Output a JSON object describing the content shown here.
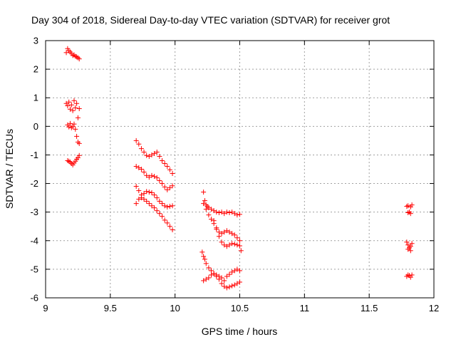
{
  "chart_data": {
    "type": "scatter",
    "title": "Day 304 of 2018, Sidereal Day-to-day VTEC variation (SDTVAR) for receiver grot",
    "xlabel": "GPS time / hours",
    "ylabel": "SDTVAR / TECUs",
    "xlim": [
      9,
      12
    ],
    "ylim": [
      -6,
      3
    ],
    "xticks": [
      9,
      9.5,
      10,
      10.5,
      11,
      11.5,
      12
    ],
    "yticks": [
      -6,
      -5,
      -4,
      -3,
      -2,
      -1,
      0,
      1,
      2,
      3
    ],
    "xtick_labels": [
      "9",
      "9.5",
      "10",
      "10.5",
      "11",
      "11.5",
      "12"
    ],
    "ytick_labels": [
      "-6",
      "-5",
      "-4",
      "-3",
      "-2",
      "-1",
      "0",
      "1",
      "2",
      "3"
    ],
    "grid": true,
    "marker": "+",
    "marker_color": "#ff0000",
    "series": [
      {
        "name": "cluster-9.2h",
        "points": [
          [
            9.16,
            2.58
          ],
          [
            9.17,
            2.72
          ],
          [
            9.18,
            2.65
          ],
          [
            9.19,
            2.6
          ],
          [
            9.2,
            2.55
          ],
          [
            9.21,
            2.48
          ],
          [
            9.22,
            2.5
          ],
          [
            9.23,
            2.45
          ],
          [
            9.24,
            2.43
          ],
          [
            9.25,
            2.4
          ],
          [
            9.26,
            2.36
          ],
          [
            9.16,
            0.8
          ],
          [
            9.17,
            0.72
          ],
          [
            9.18,
            0.85
          ],
          [
            9.19,
            0.6
          ],
          [
            9.2,
            0.75
          ],
          [
            9.21,
            0.55
          ],
          [
            9.22,
            0.9
          ],
          [
            9.23,
            0.65
          ],
          [
            9.24,
            0.8
          ],
          [
            9.25,
            0.3
          ],
          [
            9.26,
            0.62
          ],
          [
            9.17,
            0.05
          ],
          [
            9.18,
            -0.02
          ],
          [
            9.19,
            0.1
          ],
          [
            9.2,
            -0.05
          ],
          [
            9.21,
            0.0
          ],
          [
            9.22,
            0.08
          ],
          [
            9.23,
            -0.1
          ],
          [
            9.24,
            -0.35
          ],
          [
            9.25,
            -0.55
          ],
          [
            9.26,
            -0.6
          ],
          [
            9.17,
            -1.2
          ],
          [
            9.18,
            -1.22
          ],
          [
            9.19,
            -1.25
          ],
          [
            9.2,
            -1.3
          ],
          [
            9.21,
            -1.35
          ],
          [
            9.22,
            -1.28
          ],
          [
            9.23,
            -1.22
          ],
          [
            9.24,
            -1.15
          ],
          [
            9.25,
            -1.1
          ],
          [
            9.26,
            -1.02
          ]
        ]
      },
      {
        "name": "cluster-9.8h",
        "points": [
          [
            9.7,
            -0.5
          ],
          [
            9.72,
            -0.62
          ],
          [
            9.74,
            -0.78
          ],
          [
            9.76,
            -0.9
          ],
          [
            9.78,
            -1.02
          ],
          [
            9.8,
            -1.05
          ],
          [
            9.82,
            -1.0
          ],
          [
            9.84,
            -0.95
          ],
          [
            9.86,
            -0.9
          ],
          [
            9.88,
            -1.05
          ],
          [
            9.9,
            -1.2
          ],
          [
            9.92,
            -1.3
          ],
          [
            9.94,
            -1.4
          ],
          [
            9.96,
            -1.52
          ],
          [
            9.98,
            -1.65
          ],
          [
            9.7,
            -1.4
          ],
          [
            9.72,
            -1.45
          ],
          [
            9.74,
            -1.5
          ],
          [
            9.76,
            -1.6
          ],
          [
            9.78,
            -1.72
          ],
          [
            9.8,
            -1.78
          ],
          [
            9.82,
            -1.72
          ],
          [
            9.84,
            -1.75
          ],
          [
            9.86,
            -1.8
          ],
          [
            9.88,
            -1.9
          ],
          [
            9.9,
            -2.0
          ],
          [
            9.92,
            -2.12
          ],
          [
            9.94,
            -2.22
          ],
          [
            9.96,
            -2.15
          ],
          [
            9.98,
            -2.08
          ],
          [
            9.7,
            -2.1
          ],
          [
            9.72,
            -2.25
          ],
          [
            9.74,
            -2.4
          ],
          [
            9.76,
            -2.35
          ],
          [
            9.78,
            -2.28
          ],
          [
            9.8,
            -2.3
          ],
          [
            9.82,
            -2.32
          ],
          [
            9.84,
            -2.4
          ],
          [
            9.86,
            -2.5
          ],
          [
            9.88,
            -2.62
          ],
          [
            9.9,
            -2.7
          ],
          [
            9.92,
            -2.78
          ],
          [
            9.94,
            -2.82
          ],
          [
            9.96,
            -2.8
          ],
          [
            9.98,
            -2.78
          ],
          [
            9.7,
            -2.7
          ],
          [
            9.72,
            -2.55
          ],
          [
            9.74,
            -2.5
          ],
          [
            9.76,
            -2.55
          ],
          [
            9.78,
            -2.62
          ],
          [
            9.8,
            -2.7
          ],
          [
            9.82,
            -2.78
          ],
          [
            9.84,
            -2.85
          ],
          [
            9.86,
            -2.95
          ],
          [
            9.88,
            -3.05
          ],
          [
            9.9,
            -3.15
          ],
          [
            9.92,
            -3.28
          ],
          [
            9.94,
            -3.38
          ],
          [
            9.96,
            -3.5
          ],
          [
            9.98,
            -3.62
          ]
        ]
      },
      {
        "name": "cluster-10.4h",
        "points": [
          [
            10.22,
            -2.3
          ],
          [
            10.23,
            -2.6
          ],
          [
            10.24,
            -2.75
          ],
          [
            10.25,
            -2.8
          ],
          [
            10.26,
            -2.85
          ],
          [
            10.28,
            -2.9
          ],
          [
            10.3,
            -2.95
          ],
          [
            10.32,
            -3.0
          ],
          [
            10.34,
            -3.02
          ],
          [
            10.36,
            -3.0
          ],
          [
            10.38,
            -3.05
          ],
          [
            10.4,
            -3.0
          ],
          [
            10.42,
            -3.02
          ],
          [
            10.44,
            -3.0
          ],
          [
            10.46,
            -3.05
          ],
          [
            10.48,
            -3.1
          ],
          [
            10.5,
            -3.08
          ],
          [
            10.22,
            -2.7
          ],
          [
            10.24,
            -2.9
          ],
          [
            10.26,
            -3.1
          ],
          [
            10.28,
            -3.25
          ],
          [
            10.3,
            -3.4
          ],
          [
            10.32,
            -3.55
          ],
          [
            10.34,
            -3.7
          ],
          [
            10.36,
            -3.75
          ],
          [
            10.38,
            -3.7
          ],
          [
            10.4,
            -3.65
          ],
          [
            10.42,
            -3.7
          ],
          [
            10.44,
            -3.75
          ],
          [
            10.46,
            -3.8
          ],
          [
            10.48,
            -3.9
          ],
          [
            10.5,
            -4.0
          ],
          [
            10.3,
            -3.3
          ],
          [
            10.32,
            -3.6
          ],
          [
            10.34,
            -3.85
          ],
          [
            10.36,
            -4.05
          ],
          [
            10.38,
            -4.15
          ],
          [
            10.4,
            -4.2
          ],
          [
            10.42,
            -4.15
          ],
          [
            10.44,
            -4.1
          ],
          [
            10.46,
            -4.12
          ],
          [
            10.48,
            -4.15
          ],
          [
            10.5,
            -4.18
          ],
          [
            10.51,
            -4.35
          ],
          [
            10.21,
            -4.4
          ],
          [
            10.22,
            -4.55
          ],
          [
            10.23,
            -4.65
          ],
          [
            10.24,
            -4.8
          ],
          [
            10.26,
            -4.95
          ],
          [
            10.28,
            -5.05
          ],
          [
            10.3,
            -5.15
          ],
          [
            10.32,
            -5.2
          ],
          [
            10.34,
            -5.25
          ],
          [
            10.36,
            -5.3
          ],
          [
            10.38,
            -5.4
          ],
          [
            10.4,
            -5.25
          ],
          [
            10.42,
            -5.18
          ],
          [
            10.44,
            -5.1
          ],
          [
            10.46,
            -5.05
          ],
          [
            10.48,
            -5.0
          ],
          [
            10.5,
            -5.05
          ],
          [
            10.22,
            -5.4
          ],
          [
            10.24,
            -5.35
          ],
          [
            10.26,
            -5.3
          ],
          [
            10.28,
            -5.2
          ],
          [
            10.3,
            -5.15
          ],
          [
            10.32,
            -5.25
          ],
          [
            10.34,
            -5.35
          ],
          [
            10.36,
            -5.5
          ],
          [
            10.38,
            -5.6
          ],
          [
            10.4,
            -5.65
          ],
          [
            10.42,
            -5.62
          ],
          [
            10.44,
            -5.58
          ],
          [
            10.46,
            -5.55
          ],
          [
            10.48,
            -5.5
          ],
          [
            10.5,
            -5.45
          ]
        ]
      },
      {
        "name": "cluster-11.8h",
        "points": [
          [
            11.79,
            -2.8
          ],
          [
            11.8,
            -2.78
          ],
          [
            11.81,
            -3.0
          ],
          [
            11.82,
            -2.82
          ],
          [
            11.83,
            -2.75
          ],
          [
            11.8,
            -3.02
          ],
          [
            11.82,
            -3.05
          ],
          [
            11.79,
            -4.05
          ],
          [
            11.8,
            -4.15
          ],
          [
            11.81,
            -4.25
          ],
          [
            11.82,
            -4.2
          ],
          [
            11.83,
            -4.1
          ],
          [
            11.8,
            -4.3
          ],
          [
            11.82,
            -4.35
          ],
          [
            11.79,
            -5.25
          ],
          [
            11.8,
            -5.2
          ],
          [
            11.81,
            -5.22
          ],
          [
            11.82,
            -5.28
          ],
          [
            11.83,
            -5.2
          ]
        ]
      }
    ]
  }
}
